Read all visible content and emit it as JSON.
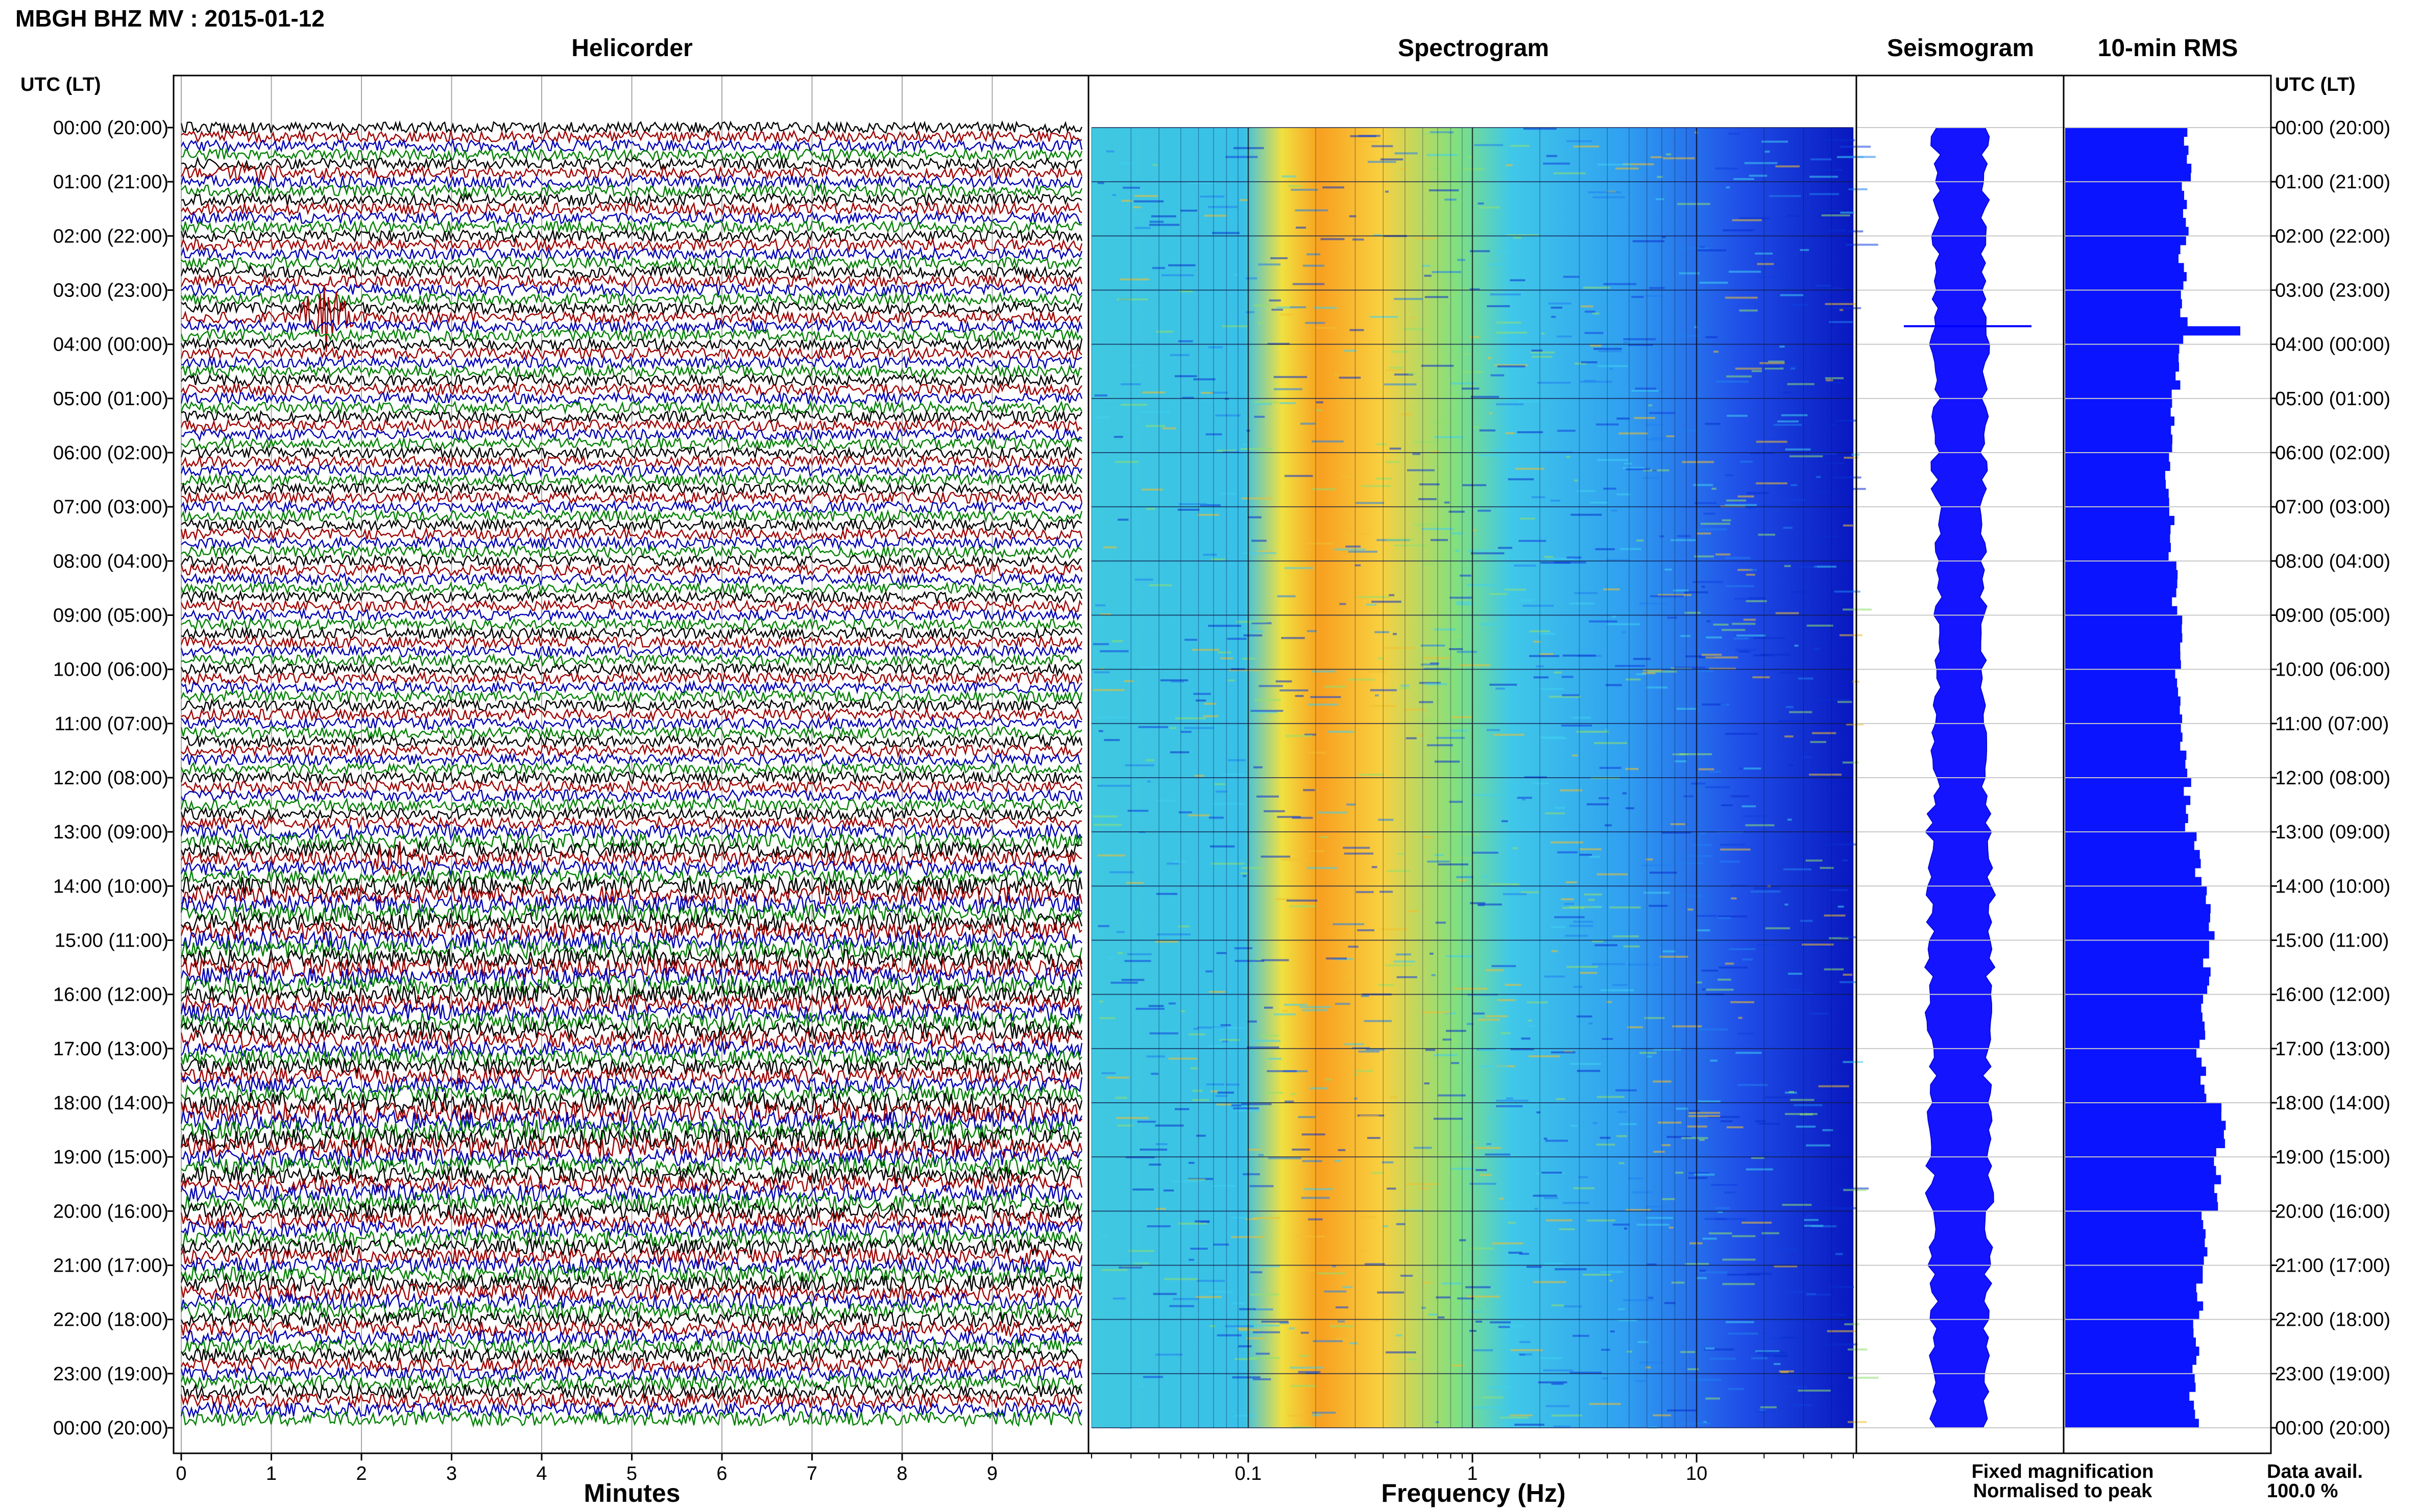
{
  "header": {
    "title": "MBGH BHZ MV : 2015-01-12"
  },
  "panels": {
    "helicorder": "Helicorder",
    "spectrogram": "Spectrogram",
    "seismogram": "Seismogram",
    "rms": "10-min RMS"
  },
  "time_axis": {
    "label_left": "UTC (LT)",
    "label_right": "UTC (LT)",
    "ticks": [
      "00:00 (20:00)",
      "01:00 (21:00)",
      "02:00 (22:00)",
      "03:00 (23:00)",
      "04:00 (00:00)",
      "05:00 (01:00)",
      "06:00 (02:00)",
      "07:00 (03:00)",
      "08:00 (04:00)",
      "09:00 (05:00)",
      "10:00 (06:00)",
      "11:00 (07:00)",
      "12:00 (08:00)",
      "13:00 (09:00)",
      "14:00 (10:00)",
      "15:00 (11:00)",
      "16:00 (12:00)",
      "17:00 (13:00)",
      "18:00 (14:00)",
      "19:00 (15:00)",
      "20:00 (16:00)",
      "21:00 (17:00)",
      "22:00 (18:00)",
      "23:00 (19:00)",
      "00:00 (20:00)"
    ]
  },
  "helicorder_axis": {
    "xlabel": "Minutes",
    "ticks": [
      "0",
      "1",
      "2",
      "3",
      "4",
      "5",
      "6",
      "7",
      "8",
      "9"
    ],
    "trace_colors": [
      "#000000",
      "#a00000",
      "#0000b4",
      "#008000"
    ]
  },
  "spectrogram_axis": {
    "xlabel": "Frequency (Hz)",
    "ticks": [
      "0.1",
      "1",
      "10"
    ],
    "scale": "log"
  },
  "legend": {
    "fixed": "Fixed magnification",
    "fixed_color": "#0000ff",
    "normalised": "Normalised to peak",
    "normalised_color": "#ff0000"
  },
  "data_availability": {
    "label": "Data avail.",
    "value": "100.0 %"
  },
  "chart_data": [
    {
      "type": "line",
      "panel": "Helicorder",
      "xlabel": "Minutes",
      "xlim": [
        0,
        10
      ],
      "rows_per_hour": 6,
      "hours": 24,
      "events": [
        {
          "time_utc": "00:50",
          "minute": 0.8,
          "amplitude": 0.5
        },
        {
          "time_utc": "03:30",
          "minute": 1.6,
          "amplitude": 3.0
        },
        {
          "time_utc": "13:30",
          "minute": 2.4,
          "amplitude": 0.8
        }
      ],
      "noise_levels": [
        0.38,
        0.4,
        0.39,
        0.4,
        0.38,
        0.38,
        0.37,
        0.38,
        0.37,
        0.37,
        0.38,
        0.38,
        0.39,
        0.5,
        0.62,
        0.64,
        0.6,
        0.55,
        0.7,
        0.6,
        0.55,
        0.56,
        0.5,
        0.48
      ]
    },
    {
      "type": "heatmap",
      "panel": "Spectrogram",
      "xlabel": "Frequency (Hz)",
      "xscale": "log",
      "xlim": [
        0.02,
        50
      ],
      "peak_band_hz": [
        0.15,
        0.35
      ]
    },
    {
      "type": "area",
      "panel": "Seismogram",
      "hourly_amplitude": [
        0.3,
        0.3,
        0.29,
        0.29,
        0.3,
        0.29,
        0.28,
        0.28,
        0.28,
        0.29,
        0.29,
        0.3,
        0.31,
        0.34,
        0.36,
        0.36,
        0.35,
        0.32,
        0.37,
        0.36,
        0.33,
        0.33,
        0.32,
        0.31
      ],
      "spike": {
        "time_utc": "03:40",
        "amplitude": 1.0
      }
    },
    {
      "type": "bar",
      "panel": "10-min RMS",
      "orientation": "horizontal",
      "interval_minutes": 10,
      "hourly_rms": [
        0.68,
        0.68,
        0.66,
        0.66,
        0.62,
        0.6,
        0.58,
        0.6,
        0.62,
        0.64,
        0.64,
        0.66,
        0.68,
        0.75,
        0.82,
        0.8,
        0.78,
        0.76,
        0.88,
        0.84,
        0.78,
        0.76,
        0.74,
        0.72
      ],
      "spike": {
        "time_utc": "03:40",
        "rms": 0.98
      }
    }
  ]
}
